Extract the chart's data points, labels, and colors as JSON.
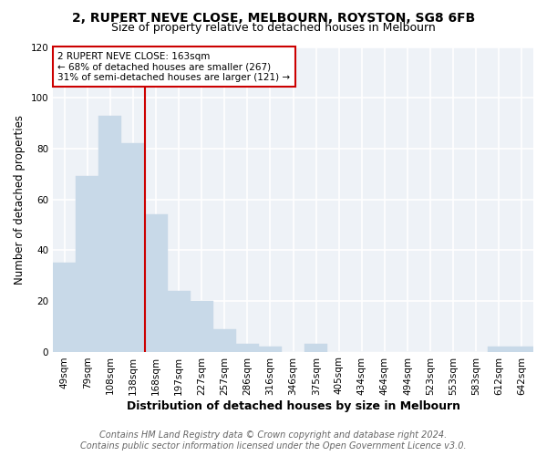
{
  "title1": "2, RUPERT NEVE CLOSE, MELBOURN, ROYSTON, SG8 6FB",
  "title2": "Size of property relative to detached houses in Melbourn",
  "xlabel": "Distribution of detached houses by size in Melbourn",
  "ylabel": "Number of detached properties",
  "categories": [
    "49sqm",
    "79sqm",
    "108sqm",
    "138sqm",
    "168sqm",
    "197sqm",
    "227sqm",
    "257sqm",
    "286sqm",
    "316sqm",
    "346sqm",
    "375sqm",
    "405sqm",
    "434sqm",
    "464sqm",
    "494sqm",
    "523sqm",
    "553sqm",
    "583sqm",
    "612sqm",
    "642sqm"
  ],
  "values": [
    35,
    69,
    93,
    82,
    54,
    24,
    20,
    9,
    3,
    2,
    0,
    3,
    0,
    0,
    0,
    0,
    0,
    0,
    0,
    2,
    2
  ],
  "bar_color": "#c8d9e8",
  "bar_edge_color": "#c8d9e8",
  "vline_index": 4,
  "vline_color": "#cc0000",
  "annotation_text": "2 RUPERT NEVE CLOSE: 163sqm\n← 68% of detached houses are smaller (267)\n31% of semi-detached houses are larger (121) →",
  "annotation_box_color": "#ffffff",
  "annotation_box_edge_color": "#cc0000",
  "ylim": [
    0,
    120
  ],
  "yticks": [
    0,
    20,
    40,
    60,
    80,
    100,
    120
  ],
  "footer1": "Contains HM Land Registry data © Crown copyright and database right 2024.",
  "footer2": "Contains public sector information licensed under the Open Government Licence v3.0.",
  "bg_color": "#eef2f7",
  "grid_color": "#ffffff",
  "title1_fontsize": 10,
  "title2_fontsize": 9,
  "xlabel_fontsize": 9,
  "ylabel_fontsize": 8.5,
  "tick_fontsize": 7.5,
  "footer_fontsize": 7,
  "annot_fontsize": 7.5
}
